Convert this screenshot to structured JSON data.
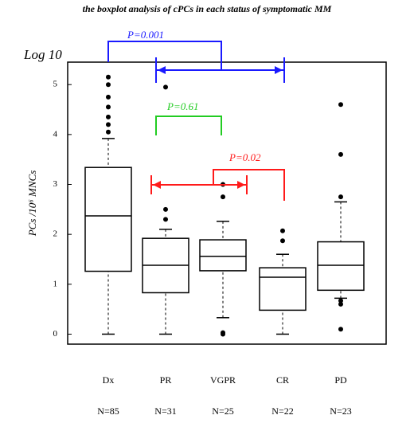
{
  "chart_data": {
    "type": "box",
    "title": "the boxplot analysis of cPCs in each status of symptomatic MM",
    "y_unit_label": "Log 10",
    "y_label": "PCs /10⁶ MNCs",
    "categories": [
      "Dx",
      "PR",
      "VGPR",
      "CR",
      "PD"
    ],
    "n_labels": [
      "N=85",
      "N=31",
      "N=25",
      "N=22",
      "N=23"
    ],
    "boxes": [
      {
        "low": 0,
        "q1": 1.26,
        "median": 2.37,
        "q3": 3.34,
        "high": 3.92,
        "outliers": [
          5.15,
          5.0,
          4.75,
          4.55,
          4.35,
          4.2,
          4.05
        ]
      },
      {
        "low": 0,
        "q1": 0.83,
        "median": 1.38,
        "q3": 1.92,
        "high": 2.1,
        "outliers": [
          2.3,
          2.5,
          4.95
        ]
      },
      {
        "low": 0.33,
        "q1": 1.27,
        "median": 1.56,
        "q3": 1.89,
        "high": 2.26,
        "outliers": [
          0.03,
          0.0,
          2.75,
          3.0
        ]
      },
      {
        "low": 0,
        "q1": 0.48,
        "median": 1.14,
        "q3": 1.33,
        "high": 1.6,
        "outliers": [
          1.87,
          2.07
        ]
      },
      {
        "low": 0.72,
        "q1": 0.88,
        "median": 1.38,
        "q3": 1.85,
        "high": 2.65,
        "outliers": [
          0.67,
          0.6,
          0.1,
          2.75,
          3.6,
          4.6
        ]
      }
    ],
    "color": "#000000",
    "ylim": [
      -0.2,
      5.45
    ],
    "yticks": [
      0,
      1,
      2,
      3,
      4,
      5
    ],
    "annotations": [
      {
        "text": "P=0.001",
        "color": "#1a1aff"
      },
      {
        "text": "P=0.61",
        "color": "#22cc22"
      },
      {
        "text": "P=0.02",
        "color": "#ff1a1a"
      }
    ]
  }
}
